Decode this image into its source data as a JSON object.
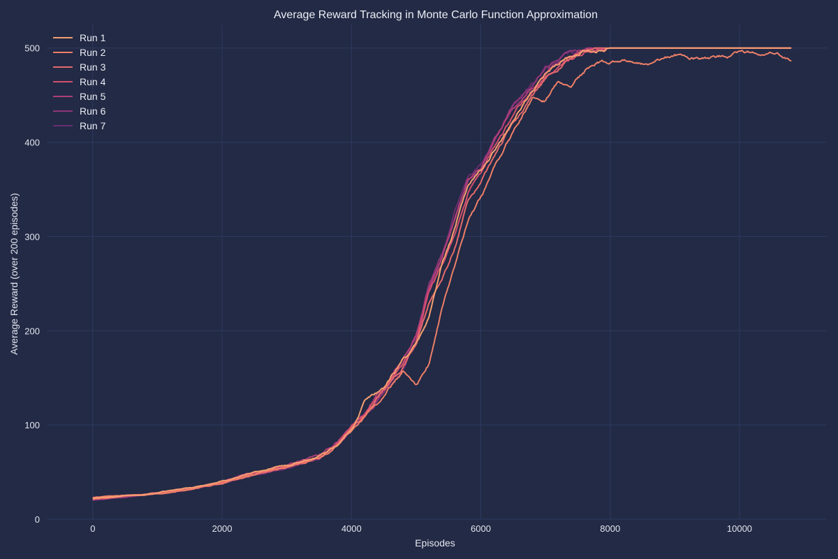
{
  "chart_data": {
    "type": "line",
    "title": "Average Reward Tracking in Monte Carlo Function Approximation",
    "xlabel": "Episodes",
    "ylabel": "Average Reward (over 200 episodes)",
    "xlim": [
      -700,
      11350
    ],
    "ylim": [
      0,
      525
    ],
    "xticks": [
      0,
      2000,
      4000,
      6000,
      8000,
      10000
    ],
    "yticks": [
      0,
      100,
      200,
      300,
      400,
      500
    ],
    "grid": true,
    "legend_position": "top-left",
    "background": "#222a45",
    "grid_color": "#2f3a60",
    "text_color": "#e3e6ef",
    "series": [
      {
        "name": "Run 1",
        "color": "#f5a071",
        "x": [
          0,
          500,
          1000,
          1500,
          2000,
          2500,
          3000,
          3500,
          3800,
          4000,
          4200,
          4500,
          4800,
          5000,
          5200,
          5400,
          5600,
          5800,
          6000,
          6200,
          6500,
          6800,
          7000,
          7300,
          7600,
          8000,
          8500,
          9000,
          9500,
          10000,
          10500,
          10800
        ],
        "y": [
          22,
          25,
          28,
          33,
          40,
          50,
          57,
          67,
          80,
          95,
          125,
          140,
          170,
          185,
          215,
          270,
          310,
          355,
          370,
          390,
          425,
          455,
          472,
          488,
          497,
          500,
          500,
          500,
          500,
          500,
          500,
          500
        ]
      },
      {
        "name": "Run 2",
        "color": "#ee7f68",
        "x": [
          0,
          500,
          1000,
          1500,
          2000,
          2500,
          3000,
          3500,
          3800,
          4000,
          4200,
          4500,
          4800,
          4900,
          5000,
          5200,
          5400,
          5600,
          5800,
          6000,
          6200,
          6500,
          6800,
          7000,
          7200,
          7400,
          7600,
          7800,
          8000,
          8300,
          8600,
          9000,
          9300,
          9600,
          10000,
          10300,
          10600,
          10800
        ],
        "y": [
          23,
          25,
          27,
          32,
          38,
          48,
          55,
          64,
          78,
          94,
          108,
          130,
          158,
          150,
          142,
          165,
          225,
          270,
          315,
          340,
          372,
          410,
          447,
          445,
          465,
          462,
          475,
          485,
          484,
          488,
          483,
          492,
          490,
          489,
          495,
          496,
          494,
          488
        ]
      },
      {
        "name": "Run 3",
        "color": "#e66a6c",
        "x": [
          0,
          500,
          1000,
          1500,
          2000,
          2500,
          3000,
          3500,
          3800,
          4000,
          4200,
          4500,
          4800,
          5000,
          5200,
          5400,
          5600,
          5800,
          6000,
          6200,
          6500,
          6800,
          7000,
          7300,
          7600,
          8000,
          8500,
          9000,
          9500,
          10000,
          10500,
          10800
        ],
        "y": [
          21,
          24,
          27,
          31,
          38,
          47,
          55,
          66,
          80,
          97,
          110,
          135,
          160,
          185,
          230,
          255,
          290,
          340,
          360,
          385,
          420,
          450,
          468,
          485,
          495,
          500,
          500,
          500,
          500,
          500,
          500,
          500
        ]
      },
      {
        "name": "Run 4",
        "color": "#d6506f",
        "x": [
          0,
          500,
          1000,
          1500,
          2000,
          2500,
          3000,
          3500,
          3800,
          4000,
          4200,
          4500,
          4800,
          5000,
          5200,
          5400,
          5600,
          5800,
          6000,
          6200,
          6500,
          6800,
          7000,
          7300,
          7600,
          8000,
          8500,
          9000,
          9500,
          10000,
          10500,
          10800
        ],
        "y": [
          23,
          25,
          28,
          32,
          39,
          49,
          56,
          66,
          82,
          98,
          112,
          138,
          163,
          190,
          240,
          270,
          300,
          345,
          365,
          395,
          430,
          455,
          470,
          487,
          496,
          500,
          500,
          500,
          500,
          500,
          500,
          500
        ]
      },
      {
        "name": "Run 5",
        "color": "#b03f77",
        "x": [
          0,
          500,
          1000,
          1500,
          2000,
          2500,
          3000,
          3500,
          3800,
          4000,
          4200,
          4500,
          4800,
          5000,
          5200,
          5400,
          5600,
          5800,
          6000,
          6200,
          6500,
          6800,
          7000,
          7300,
          7600,
          8000,
          8500,
          9000,
          9500,
          10000,
          10500,
          10800
        ],
        "y": [
          22,
          24,
          28,
          33,
          40,
          50,
          57,
          68,
          83,
          100,
          114,
          140,
          168,
          195,
          245,
          275,
          320,
          360,
          372,
          400,
          435,
          458,
          475,
          490,
          497,
          500,
          500,
          500,
          500,
          500,
          500,
          500
        ]
      },
      {
        "name": "Run 6",
        "color": "#8e3678",
        "x": [
          0,
          500,
          1000,
          1500,
          2000,
          2500,
          3000,
          3500,
          3800,
          4000,
          4200,
          4500,
          4800,
          5000,
          5200,
          5400,
          5600,
          5800,
          6000,
          6200,
          6500,
          6800,
          7000,
          7300,
          7600,
          8000,
          8500,
          9000,
          9500,
          10000,
          10500,
          10800
        ],
        "y": [
          21,
          24,
          27,
          32,
          39,
          48,
          55,
          65,
          81,
          98,
          110,
          136,
          165,
          192,
          250,
          280,
          322,
          358,
          370,
          398,
          438,
          460,
          478,
          492,
          498,
          500,
          500,
          500,
          500,
          500,
          500,
          500
        ]
      },
      {
        "name": "Run 7",
        "color": "#6a2d6e",
        "x": [
          0,
          500,
          1000,
          1500,
          2000,
          2500,
          3000,
          3500,
          3800,
          4000,
          4200,
          4500,
          4800,
          5000,
          5200,
          5400,
          5600,
          5800,
          6000,
          6200,
          6500,
          6800,
          7000,
          7300,
          7600,
          8000,
          8500,
          9000,
          9500,
          10000,
          10500,
          10800
        ],
        "y": [
          20,
          23,
          27,
          31,
          38,
          47,
          54,
          64,
          80,
          96,
          108,
          134,
          162,
          188,
          245,
          280,
          325,
          362,
          375,
          402,
          440,
          462,
          480,
          493,
          498,
          500,
          500,
          500,
          500,
          500,
          500,
          500
        ]
      }
    ]
  }
}
